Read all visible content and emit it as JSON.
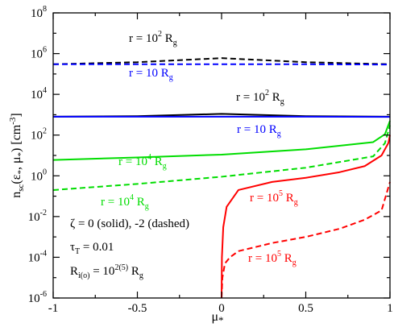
{
  "chart_data": {
    "type": "line",
    "xlabel": "μ*",
    "ylabel": "n_sc(ε*, μ*) [cm^-3]",
    "xlim": [
      -1,
      1
    ],
    "ylim": [
      1e-06,
      100000000.0
    ],
    "yscale": "log",
    "x_ticks": [
      "-1",
      "-0.5",
      "0",
      "0.5",
      "1"
    ],
    "y_ticks": [
      {
        "base": "10",
        "exp": "-6",
        "value": 1e-06
      },
      {
        "base": "10",
        "exp": "-4",
        "value": 0.0001
      },
      {
        "base": "10",
        "exp": "-2",
        "value": 0.01
      },
      {
        "base": "10",
        "exp": "0",
        "value": 1
      },
      {
        "base": "10",
        "exp": "2",
        "value": 100
      },
      {
        "base": "10",
        "exp": "4",
        "value": 10000.0
      },
      {
        "base": "10",
        "exp": "6",
        "value": 1000000.0
      },
      {
        "base": "10",
        "exp": "8",
        "value": 100000000.0
      }
    ],
    "series": [
      {
        "color": "#000000",
        "dash": true,
        "x": [
          -1,
          -0.5,
          0,
          0.5,
          1
        ],
        "y": [
          300000,
          380000,
          600000,
          380000,
          300000
        ]
      },
      {
        "color": "#0000ff",
        "dash": true,
        "x": [
          -1,
          -0.5,
          0,
          0.5,
          1
        ],
        "y": [
          300000,
          300000,
          300000,
          300000,
          290000
        ]
      },
      {
        "color": "#000000",
        "dash": false,
        "x": [
          -1,
          -0.5,
          0,
          0.5,
          1
        ],
        "y": [
          800,
          850,
          1100,
          850,
          800
        ]
      },
      {
        "color": "#0000ff",
        "dash": false,
        "x": [
          -1,
          -0.5,
          0,
          0.5,
          1
        ],
        "y": [
          800,
          800,
          800,
          800,
          780
        ]
      },
      {
        "color": "#00dd00",
        "dash": false,
        "x": [
          -1,
          -0.5,
          0,
          0.5,
          0.9,
          0.97,
          1
        ],
        "y": [
          6,
          8,
          11,
          20,
          45,
          110,
          500
        ]
      },
      {
        "color": "#00dd00",
        "dash": true,
        "x": [
          -1,
          -0.5,
          0,
          0.5,
          0.9,
          0.97,
          1
        ],
        "y": [
          0.2,
          0.4,
          0.9,
          2.5,
          9,
          40,
          300
        ]
      },
      {
        "color": "#ff0000",
        "dash": false,
        "x": [
          0.0,
          0.002,
          0.01,
          0.03,
          0.1,
          0.3,
          0.5,
          0.7,
          0.85,
          0.95,
          0.99,
          1
        ],
        "y": [
          1e-06,
          0.0001,
          0.003,
          0.03,
          0.2,
          0.5,
          0.8,
          1.5,
          3,
          10,
          40,
          100
        ]
      },
      {
        "color": "#ff0000",
        "dash": true,
        "x": [
          0.0,
          0.005,
          0.02,
          0.05,
          0.1,
          0.3,
          0.5,
          0.7,
          0.85,
          0.95,
          1
        ],
        "y": [
          1e-06,
          1e-05,
          5e-05,
          0.0001,
          0.0002,
          0.0005,
          0.001,
          0.0025,
          0.007,
          0.02,
          0.5
        ]
      }
    ],
    "annotations": [
      {
        "main": "r = 10",
        "sup": "2",
        "unit": " R",
        "sub": "g",
        "color": "#000000"
      },
      {
        "main": "r = 10 R",
        "sup": "",
        "unit": "",
        "sub": "g",
        "color": "#0000ff"
      },
      {
        "main": "r = 10",
        "sup": "2",
        "unit": " R",
        "sub": "g",
        "color": "#000000"
      },
      {
        "main": "r = 10 R",
        "sup": "",
        "unit": "",
        "sub": "g",
        "color": "#0000ff"
      },
      {
        "main": "r = 10",
        "sup": "4",
        "unit": " R",
        "sub": "g",
        "color": "#00dd00"
      },
      {
        "main": "r = 10",
        "sup": "4",
        "unit": " R",
        "sub": "g",
        "color": "#00dd00"
      },
      {
        "main": "r = 10",
        "sup": "5",
        "unit": " R",
        "sub": "g",
        "color": "#ff0000"
      },
      {
        "main": "r = 10",
        "sup": "5",
        "unit": " R",
        "sub": "g",
        "color": "#ff0000"
      }
    ],
    "legend_text": {
      "zeta": "ζ = 0 (solid), -2 (dashed)",
      "tau_main": "τ",
      "tau_sub": "T",
      "tau_rest": " = 0.01",
      "r_main": "R",
      "r_sub": "i(o)",
      "r_eq": " = 10",
      "r_sup": "2(5)",
      "r_unit": " R",
      "r_unit_sub": "g"
    }
  }
}
